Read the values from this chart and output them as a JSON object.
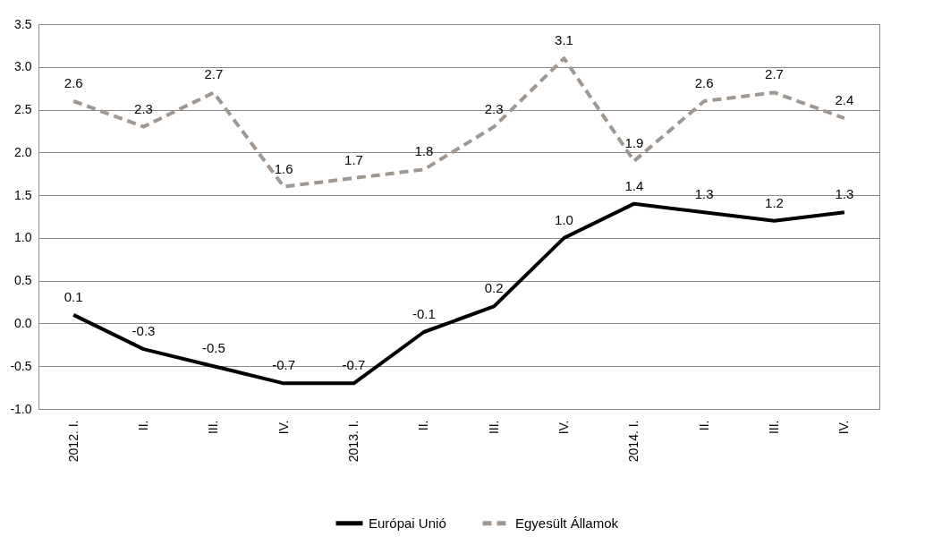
{
  "chart_data": {
    "type": "line",
    "categories": [
      "2012. I.",
      "II.",
      "III.",
      "IV.",
      "2013. I.",
      "II.",
      "III.",
      "IV.",
      "2014. I.",
      "II.",
      "III.",
      "IV."
    ],
    "series": [
      {
        "name": "Európai Unió",
        "color": "#000000",
        "line_style": "solid",
        "values": [
          0.1,
          -0.3,
          -0.5,
          -0.7,
          -0.7,
          -0.1,
          0.2,
          1.0,
          1.4,
          1.3,
          1.2,
          1.3
        ],
        "value_labels": [
          "0.1",
          "-0.3",
          "-0.5",
          "-0.7",
          "-0.7",
          "-0.1",
          "0.2",
          "1.0",
          "1.4",
          "1.3",
          "1.2",
          "1.3"
        ]
      },
      {
        "name": "Egyesült Államok",
        "color": "#a09890",
        "line_style": "dashed",
        "values": [
          2.6,
          2.3,
          2.7,
          1.6,
          1.7,
          1.8,
          2.3,
          3.1,
          1.9,
          2.6,
          2.7,
          2.4
        ],
        "value_labels": [
          "2.6",
          "2.3",
          "2.7",
          "1.6",
          "1.7",
          "1.8",
          "2.3",
          "3.1",
          "1.9",
          "2.6",
          "2.7",
          "2.4"
        ]
      }
    ],
    "ylim": [
      -1.0,
      3.5
    ],
    "yticks": [
      {
        "value": -1.0,
        "label": "-1.0"
      },
      {
        "value": -0.5,
        "label": "-0.5"
      },
      {
        "value": 0,
        "label": "0.0"
      },
      {
        "value": 0.5,
        "label": "0.5"
      },
      {
        "value": 1,
        "label": "1.0"
      },
      {
        "value": 1.5,
        "label": "1.5"
      },
      {
        "value": 2,
        "label": "2.0"
      },
      {
        "value": 2.5,
        "label": "2.5"
      },
      {
        "value": 3,
        "label": "3.0"
      },
      {
        "value": 3.5,
        "label": "3.5"
      }
    ],
    "grid": "y",
    "legend": "bottom",
    "marker": "none"
  }
}
